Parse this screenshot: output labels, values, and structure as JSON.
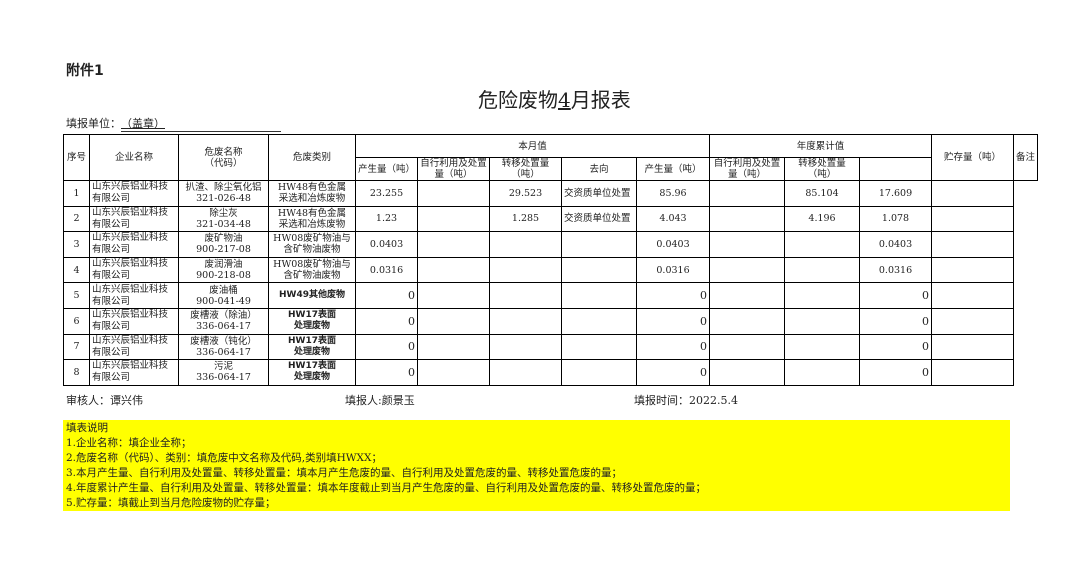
{
  "attachment": "附件1",
  "title_pre": "危险废物",
  "title_month": "4",
  "title_post": "月报表",
  "unit_label": "填报单位：",
  "unit_value": "（盖章）",
  "headers": {
    "seq": "序号",
    "company": "企业名称",
    "waste_name": "危废名称（代码）",
    "category": "危废类别",
    "month_group": "本月值",
    "year_group": "年度累计值",
    "produced": "产生量（吨）",
    "self_use": "自行利用及处置量（吨）",
    "transfer": "转移处置量（吨）",
    "destination": "去向",
    "storage": "贮存量（吨）",
    "remark": "备注"
  },
  "rows": [
    {
      "seq": "1",
      "company": "山东兴辰铝业科技有限公司",
      "name": "扒渣、除尘氧化铝",
      "code": "321-026-48",
      "cat1": "HW48有色金属",
      "cat2": "采选和冶炼废物",
      "m_prod": "23.255",
      "m_self": "",
      "m_trans": "29.523",
      "dest": "交资质单位处置",
      "y_prod": "85.96",
      "y_self": "",
      "y_trans": "85.104",
      "storage": "17.609",
      "remark": ""
    },
    {
      "seq": "2",
      "company": "山东兴辰铝业科技有限公司",
      "name": "除尘灰",
      "code": "321-034-48",
      "cat1": "HW48有色金属",
      "cat2": "采选和冶炼废物",
      "m_prod": "1.23",
      "m_self": "",
      "m_trans": "1.285",
      "dest": "交资质单位处置",
      "y_prod": "4.043",
      "y_self": "",
      "y_trans": "4.196",
      "storage": "1.078",
      "remark": ""
    },
    {
      "seq": "3",
      "company": "山东兴辰铝业科技有限公司",
      "name": "废矿物油",
      "code": "900-217-08",
      "cat1": "HW08废矿物油与",
      "cat2": "含矿物油废物",
      "m_prod": "0.0403",
      "m_self": "",
      "m_trans": "",
      "dest": "",
      "y_prod": "0.0403",
      "y_self": "",
      "y_trans": "",
      "storage": "0.0403",
      "remark": ""
    },
    {
      "seq": "4",
      "company": "山东兴辰铝业科技有限公司",
      "name": "废润滑油",
      "code": "900-218-08",
      "cat1": "HW08废矿物油与",
      "cat2": "含矿物油废物",
      "m_prod": "0.0316",
      "m_self": "",
      "m_trans": "",
      "dest": "",
      "y_prod": "0.0316",
      "y_self": "",
      "y_trans": "",
      "storage": "0.0316",
      "remark": ""
    },
    {
      "seq": "5",
      "company": "山东兴辰铝业科技有限公司",
      "name": "废油桶",
      "code": "900-041-49",
      "cat1": "HW49其他废物",
      "cat2": "",
      "m_prod": "0",
      "m_self": "",
      "m_trans": "",
      "dest": "",
      "y_prod": "0",
      "y_self": "",
      "y_trans": "",
      "storage": "0",
      "remark": ""
    },
    {
      "seq": "6",
      "company": "山东兴辰铝业科技有限公司",
      "name": "废槽液（除油）",
      "code": "336-064-17",
      "cat1": "HW17表面",
      "cat2": "处理废物",
      "m_prod": "0",
      "m_self": "",
      "m_trans": "",
      "dest": "",
      "y_prod": "0",
      "y_self": "",
      "y_trans": "",
      "storage": "0",
      "remark": ""
    },
    {
      "seq": "7",
      "company": "山东兴辰铝业科技有限公司",
      "name": "废槽液（钝化）",
      "code": "336-064-17",
      "cat1": "HW17表面",
      "cat2": "处理废物",
      "m_prod": "0",
      "m_self": "",
      "m_trans": "",
      "dest": "",
      "y_prod": "0",
      "y_self": "",
      "y_trans": "",
      "storage": "0",
      "remark": ""
    },
    {
      "seq": "8",
      "company": "山东兴辰铝业科技有限公司",
      "name": "污泥",
      "code": "336-064-17",
      "cat1": "HW17表面",
      "cat2": "处理废物",
      "m_prod": "0",
      "m_self": "",
      "m_trans": "",
      "dest": "",
      "y_prod": "0",
      "y_self": "",
      "y_trans": "",
      "storage": "0",
      "remark": ""
    }
  ],
  "footer": {
    "reviewer": "审核人：谭兴伟",
    "reporter": "填报人:颜景玉",
    "date": "填报时间：2022.5.4"
  },
  "notes": [
    "填表说明",
    "1.企业名称：填企业全称；",
    "2.危废名称（代码）、类别：填危废中文名称及代码,类别填HWXX；",
    "3.本月产生量、自行利用及处置量、转移处置量：填本月产生危废的量、自行利用及处置危废的量、转移处置危废的量；",
    "4.年度累计产生量、自行利用及处置量、转移处置量：填本年度截止到当月产生危废的量、自行利用及处置危废的量、转移处置危废的量；",
    "5.贮存量：填截止到当月危险废物的贮存量；"
  ],
  "colors": {
    "notes_bg": "#ffff00"
  }
}
